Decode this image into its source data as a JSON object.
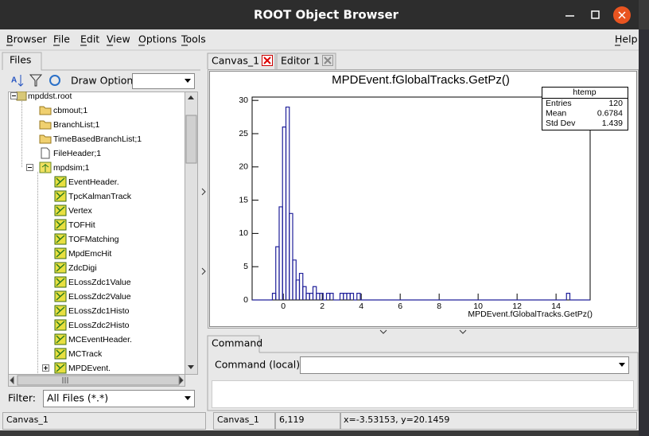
{
  "window": {
    "title": "ROOT Object Browser"
  },
  "menu": {
    "items": [
      "Browser",
      "File",
      "Edit",
      "View",
      "Options",
      "Tools"
    ],
    "help": "Help"
  },
  "left_panel": {
    "tab": "Files",
    "draw_option_label": "Draw Option:",
    "tree": {
      "label": "mpddst.root",
      "children": [
        {
          "label": "cbmout;1"
        },
        {
          "label": "BranchList;1"
        },
        {
          "label": "TimeBasedBranchList;1"
        },
        {
          "label": "FileHeader;1"
        },
        {
          "label": "mpdsim;1",
          "children": [
            {
              "label": "EventHeader."
            },
            {
              "label": "TpcKalmanTrack"
            },
            {
              "label": "Vertex"
            },
            {
              "label": "TOFHit"
            },
            {
              "label": "TOFMatching"
            },
            {
              "label": "MpdEmcHit"
            },
            {
              "label": "ZdcDigi"
            },
            {
              "label": "ELossZdc1Value"
            },
            {
              "label": "ELossZdc2Value"
            },
            {
              "label": "ELossZdc1Histo"
            },
            {
              "label": "ELossZdc2Histo"
            },
            {
              "label": "MCEventHeader."
            },
            {
              "label": "MCTrack"
            },
            {
              "label": "MPDEvent."
            }
          ]
        }
      ]
    },
    "filter_label": "Filter:",
    "filter_value": "All Files (*.*)"
  },
  "tabs": [
    "Canvas_1",
    "Editor 1"
  ],
  "chart_data": {
    "type": "histogram",
    "title": "MPDEvent.fGlobalTracks.GetPz()",
    "x_label": "MPDEvent.fGlobalTracks.GetPz()",
    "bins": [
      -1.6,
      -0.559,
      -0.386,
      -0.212,
      -0.039,
      0.135,
      0.309,
      0.482,
      0.656,
      0.829,
      1.003,
      1.176,
      1.35,
      1.523,
      1.697,
      1.87,
      2.044,
      2.217,
      2.391,
      2.564,
      2.911,
      3.085,
      3.258,
      3.432,
      3.605,
      3.779,
      3.952,
      14.536,
      14.709,
      15.75
    ],
    "values": [
      0,
      1,
      8,
      14,
      26,
      29,
      13,
      6,
      3,
      4,
      2,
      1,
      1,
      2,
      1,
      1,
      0,
      1,
      1,
      0,
      1,
      1,
      1,
      1,
      0,
      1,
      0,
      1,
      0
    ],
    "color": "#20209a",
    "xlim": [
      -1.6,
      15.75
    ],
    "ylim": [
      0,
      30.5
    ],
    "xticks": [
      0,
      2,
      4,
      6,
      8,
      10,
      12,
      14
    ],
    "yticks": [
      0,
      5,
      10,
      15,
      20,
      25,
      30
    ],
    "stats": {
      "title": "htemp",
      "rows": [
        {
          "label": "Entries",
          "value": 120
        },
        {
          "label": "Mean",
          "value": 0.6784
        },
        {
          "label": "Std Dev",
          "value": 1.439
        }
      ]
    }
  },
  "command": {
    "tab": "Command",
    "label": "Command (local):"
  },
  "status": {
    "left": "Canvas_1",
    "canvas": "Canvas_1",
    "pixel": "6,119",
    "coords": "x=-3.53153, y=20.1459"
  }
}
